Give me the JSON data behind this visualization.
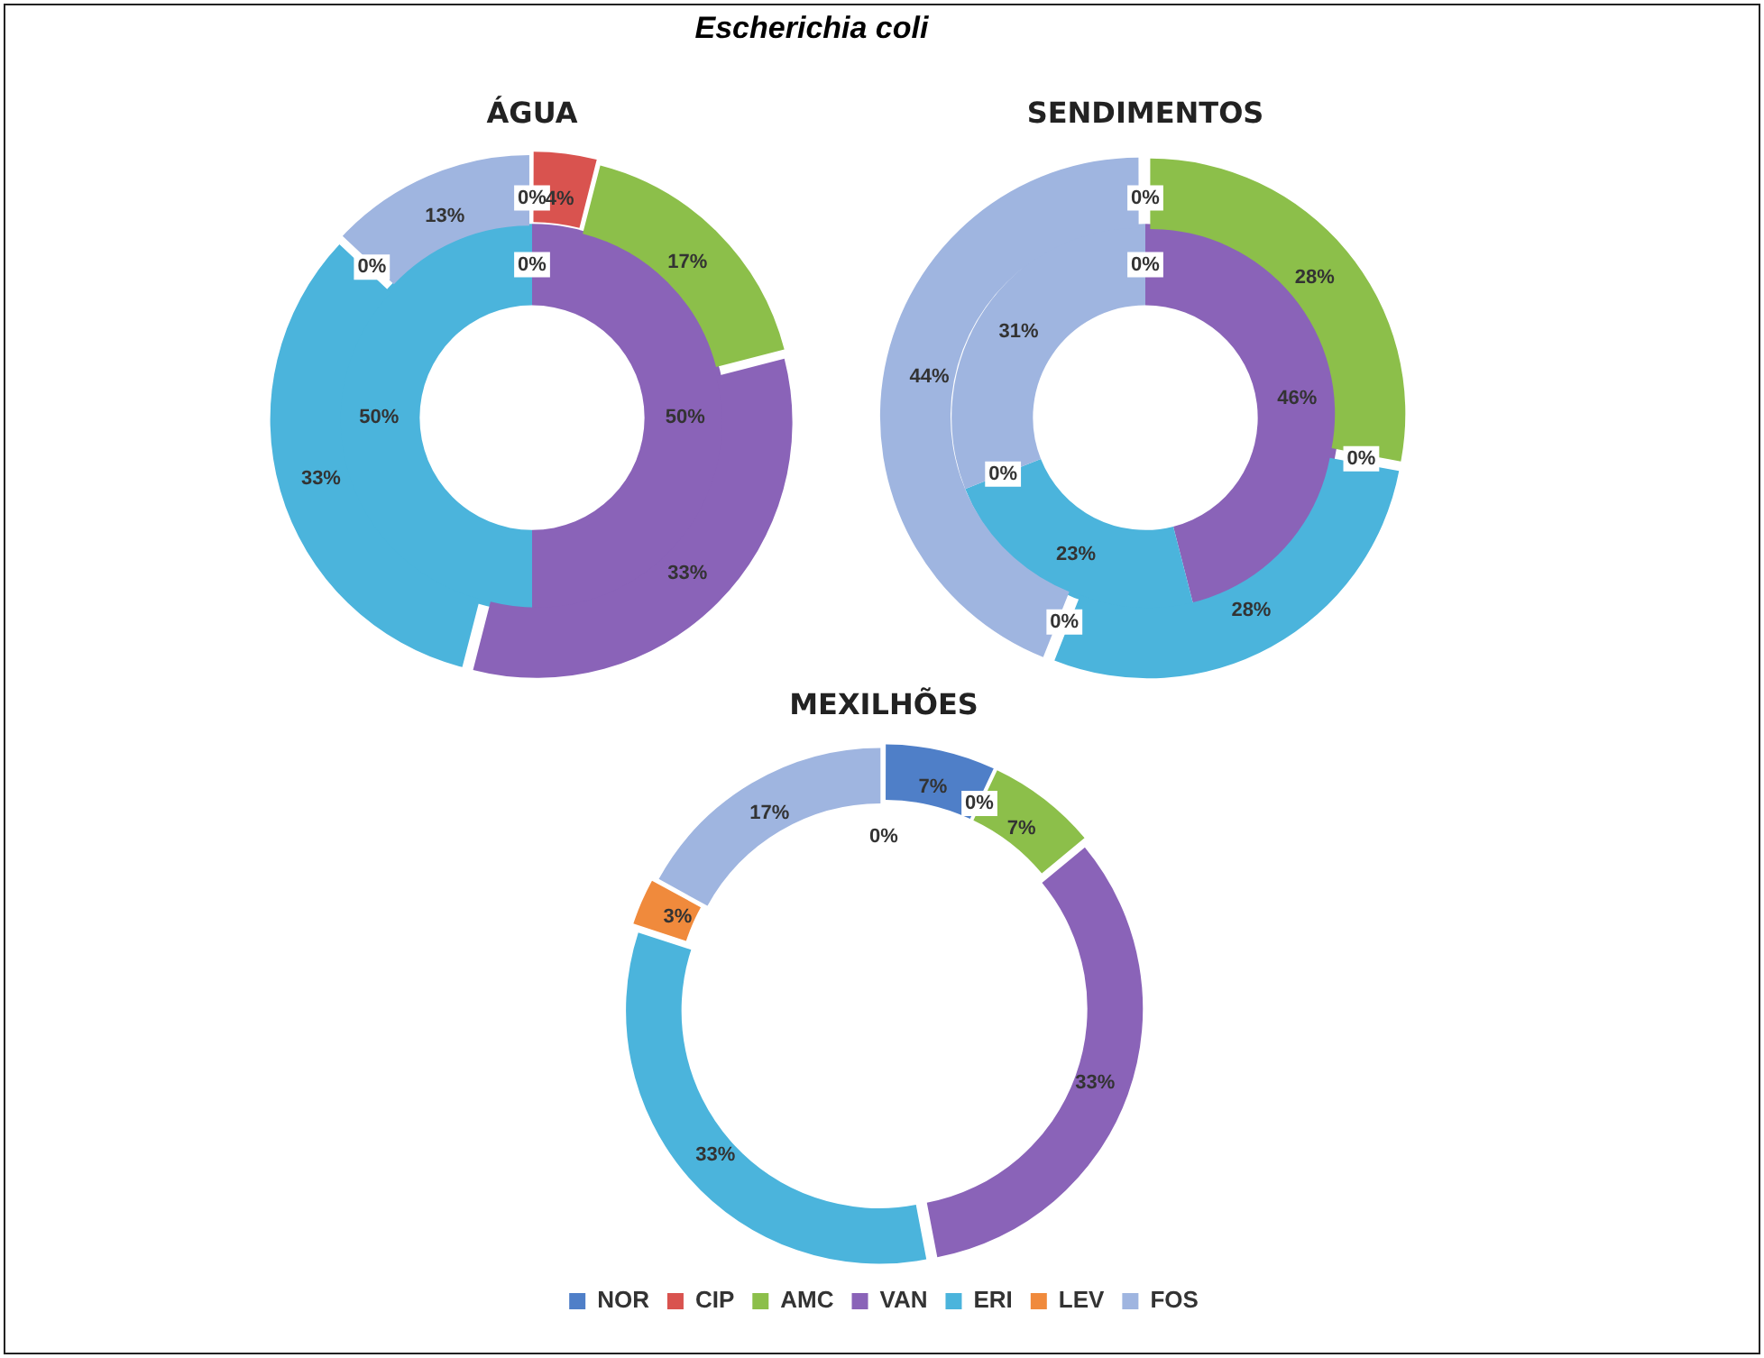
{
  "chart_data": [
    {
      "type": "donut",
      "title": "ÁGUA",
      "annotations": [
        "Escherichia coli"
      ],
      "legend": false,
      "categories": [
        null,
        null,
        null,
        null,
        null,
        null,
        null
      ],
      "colors": [
        "#4f7fc8",
        "#d9534f",
        "#8cbf4a",
        "#8a63b8",
        "#4bb4dc",
        "#f08a3c",
        "#9fb5e0"
      ],
      "series": [
        {
          "values": [
            0,
            4,
            17,
            33,
            33,
            0,
            13
          ],
          "value_labels": [
            "0%",
            "4%",
            "17%",
            "33%",
            "33%",
            "0%",
            "13%"
          ]
        },
        {
          "values": [
            0,
            0,
            0,
            50,
            50,
            0,
            0
          ],
          "value_labels": [
            "0%",
            null,
            null,
            "50%",
            "50%",
            null,
            null
          ]
        }
      ]
    },
    {
      "type": "donut",
      "title": "SENDIMENTOS",
      "legend": false,
      "categories": [
        null,
        null,
        null,
        null,
        null,
        null,
        null
      ],
      "colors": [
        "#4f7fc8",
        "#d9534f",
        "#8cbf4a",
        "#8a63b8",
        "#4bb4dc",
        "#f08a3c",
        "#9fb5e0"
      ],
      "series": [
        {
          "values": [
            0,
            0,
            28,
            0,
            28,
            0,
            44
          ],
          "value_labels": [
            "0%",
            null,
            "28%",
            "0%",
            "28%",
            "0%",
            "44%"
          ]
        },
        {
          "values": [
            0,
            0,
            0,
            46,
            23,
            0,
            31
          ],
          "value_labels": [
            "0%",
            null,
            null,
            "46%",
            "23%",
            "0%",
            "31%"
          ]
        }
      ]
    },
    {
      "type": "donut",
      "title": "MEXILHÕES",
      "annotations": [
        "0%"
      ],
      "legend": "bottom",
      "categories": [
        "NOR",
        "CIP",
        "AMC",
        "VAN",
        "ERI",
        "LEV",
        "FOS"
      ],
      "colors": [
        "#4f7fc8",
        "#d9534f",
        "#8cbf4a",
        "#8a63b8",
        "#4bb4dc",
        "#f08a3c",
        "#9fb5e0"
      ],
      "series": [
        {
          "values": [
            7,
            0,
            7,
            33,
            33,
            3,
            17
          ],
          "value_labels": [
            "7%",
            "0%",
            "7%",
            "33%",
            "33%",
            "3%",
            "17%"
          ]
        }
      ]
    }
  ]
}
